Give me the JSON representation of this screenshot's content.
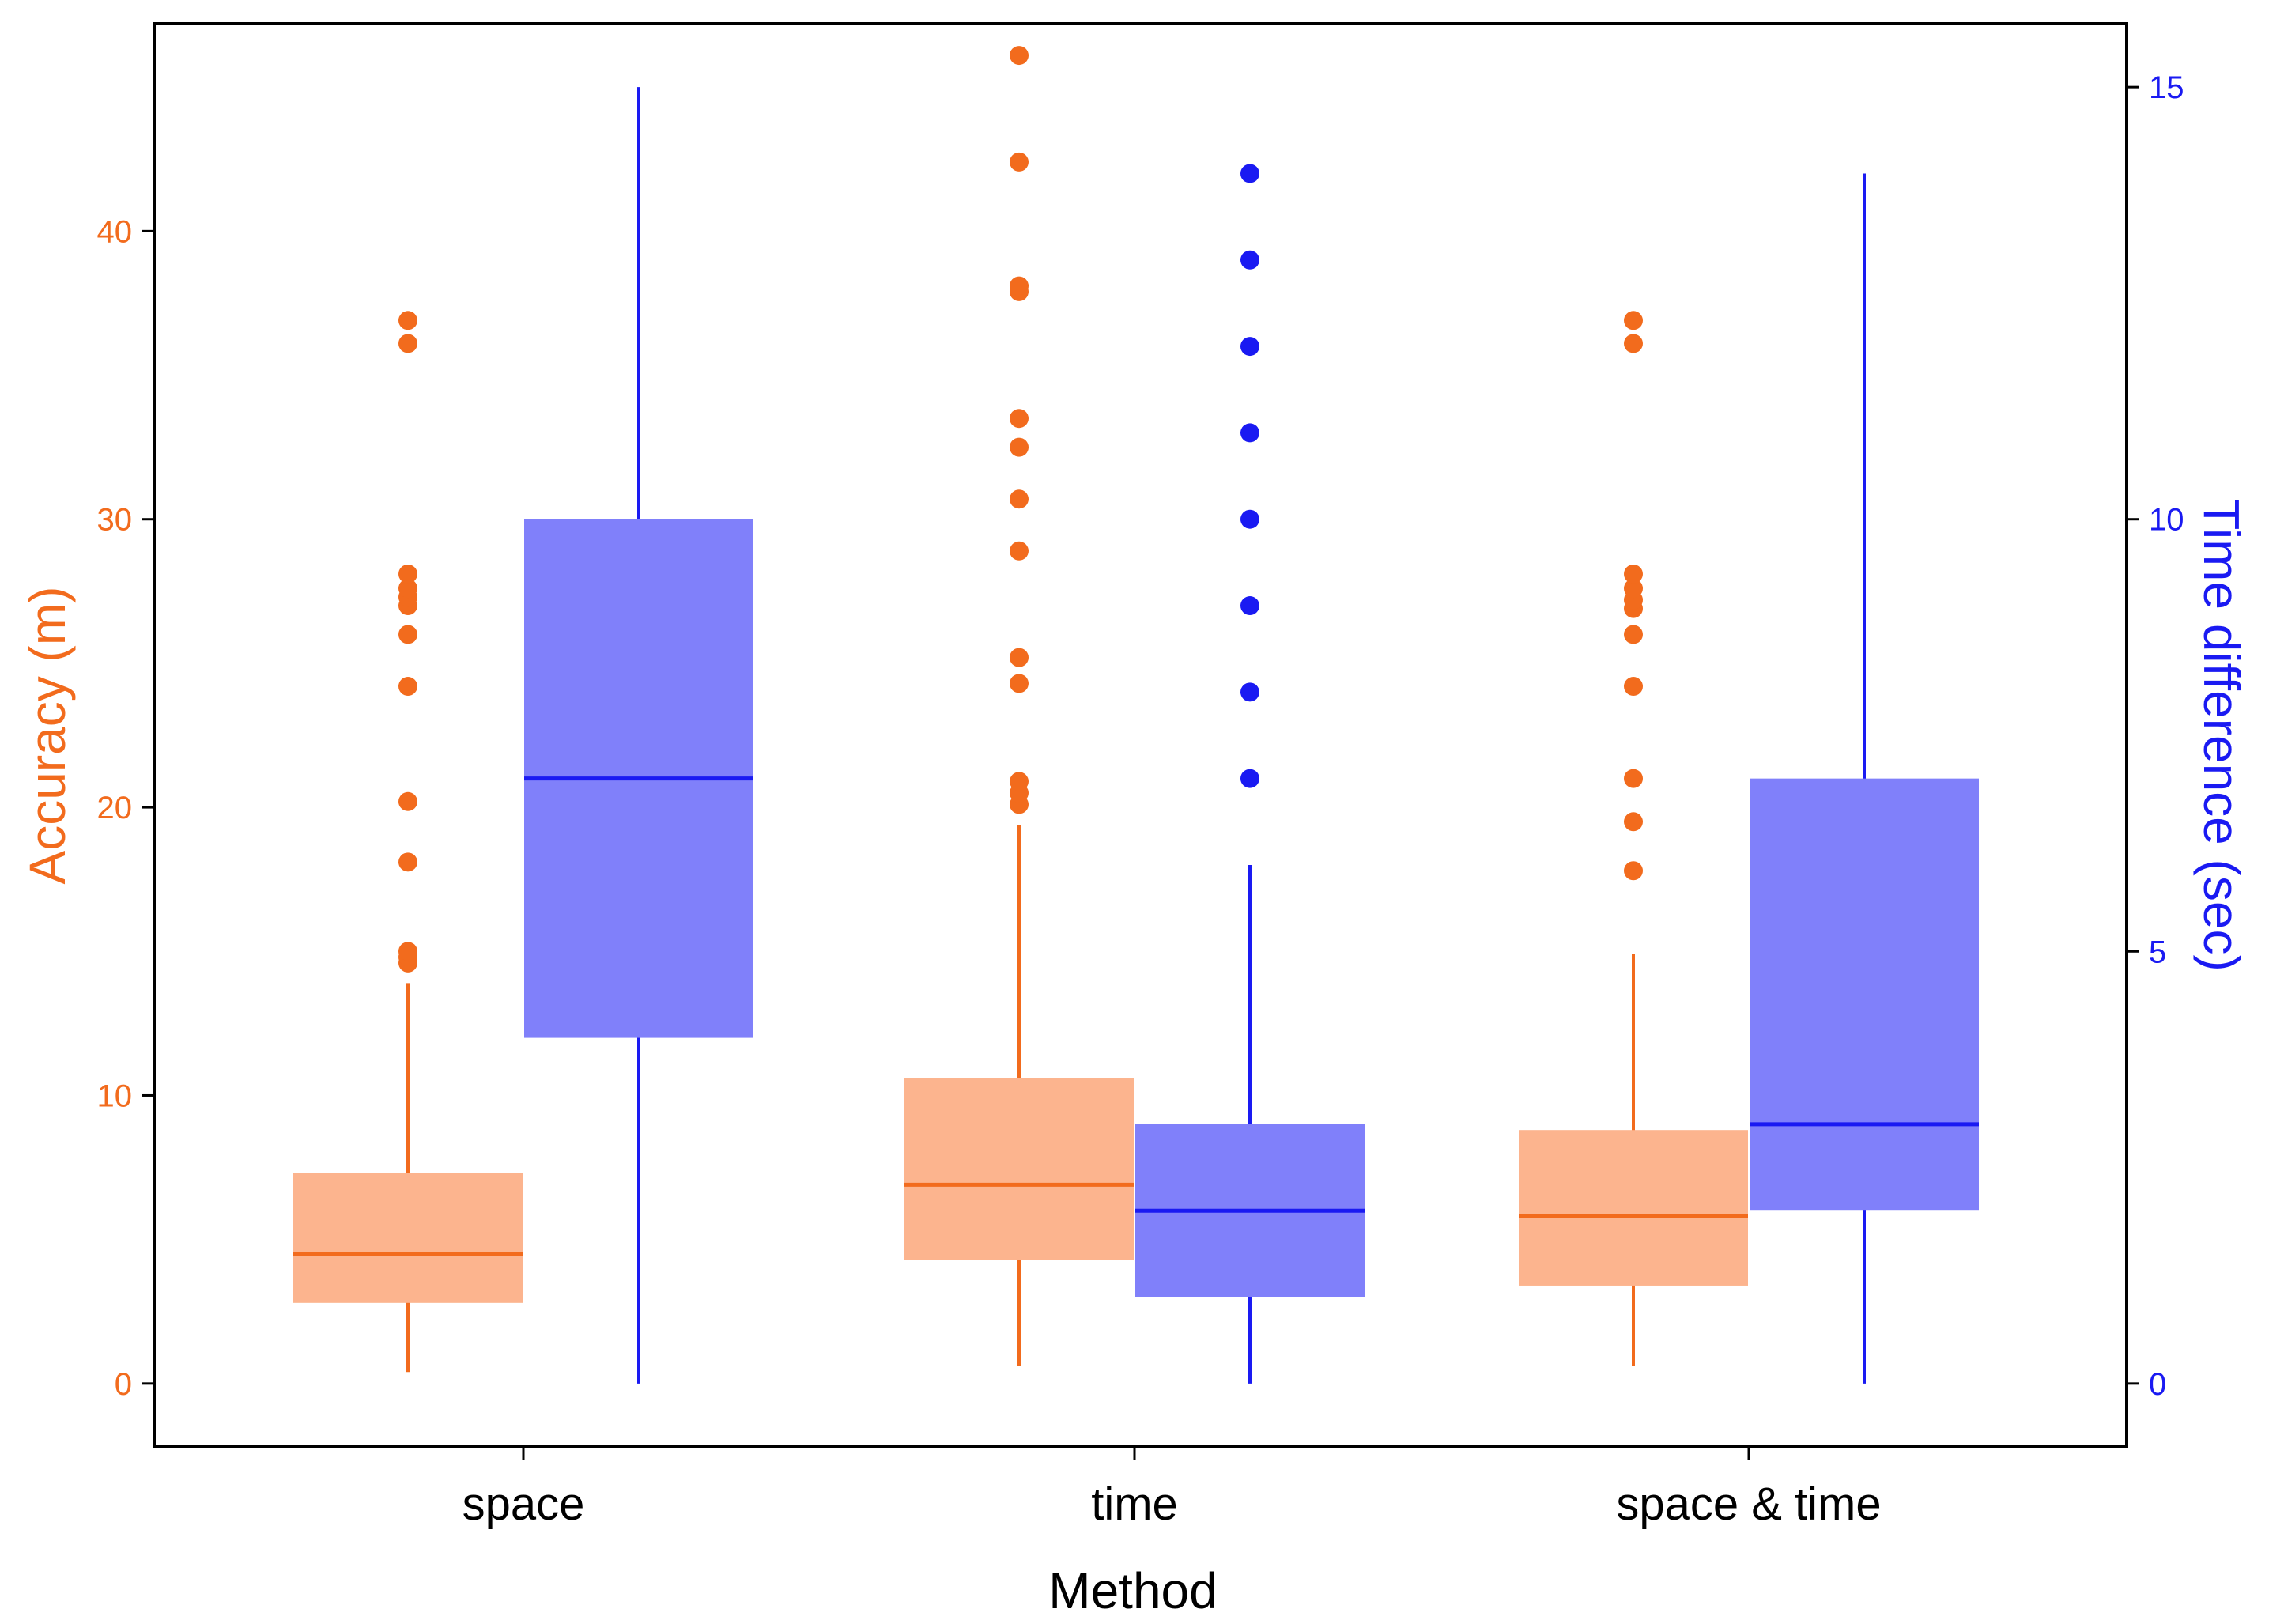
{
  "chart_data": {
    "type": "boxplot",
    "xlabel": "Method",
    "categories": [
      "space",
      "time",
      "space & time"
    ],
    "y_left": {
      "label": "Accuracy (m)",
      "range": [
        -2.2,
        47.2
      ],
      "ticks": [
        0,
        10,
        20,
        30,
        40
      ],
      "tick_labels": [
        "0",
        "10",
        "20",
        "30",
        "40"
      ],
      "color": "#F26B1D"
    },
    "y_right": {
      "label": "Time difference (sec)",
      "range": [
        -0.7333,
        15.7333
      ],
      "ticks": [
        0,
        5,
        10,
        15
      ],
      "tick_labels": [
        "0",
        "5",
        "10",
        "15"
      ],
      "color": "#1A1AF2"
    },
    "series": [
      {
        "name": "Accuracy (m)",
        "axis": "left",
        "box_fill": "#FCB48E",
        "line_color": "#F26B1D",
        "boxes": [
          {
            "category": "space",
            "whisker_low": 0.4,
            "q1": 2.8,
            "median": 4.5,
            "q3": 7.3,
            "whisker_high": 13.9,
            "outliers": [
              14.6,
              14.8,
              15.0,
              18.1,
              20.2,
              24.2,
              26.0,
              27.0,
              27.3,
              27.6,
              28.1,
              36.1,
              36.9
            ]
          },
          {
            "category": "time",
            "whisker_low": 0.6,
            "q1": 4.3,
            "median": 6.9,
            "q3": 10.6,
            "whisker_high": 19.4,
            "outliers": [
              20.1,
              20.5,
              20.9,
              24.3,
              25.2,
              28.9,
              30.7,
              32.5,
              33.5,
              37.9,
              38.1,
              42.4,
              46.1
            ]
          },
          {
            "category": "space & time",
            "whisker_low": 0.6,
            "q1": 3.4,
            "median": 5.8,
            "q3": 8.8,
            "whisker_high": 14.9,
            "outliers": [
              17.8,
              19.5,
              21.0,
              24.2,
              26.0,
              26.9,
              27.2,
              27.6,
              28.1,
              36.1,
              36.9
            ]
          }
        ]
      },
      {
        "name": "Time difference (sec)",
        "axis": "right",
        "box_fill": "#8080FA",
        "line_color": "#1A1AF2",
        "boxes": [
          {
            "category": "space",
            "whisker_low": 0,
            "q1": 4,
            "median": 7,
            "q3": 10,
            "whisker_high": 15,
            "outliers": []
          },
          {
            "category": "time",
            "whisker_low": 0,
            "q1": 1,
            "median": 2,
            "q3": 3,
            "whisker_high": 6,
            "outliers": [
              7,
              8,
              9,
              10,
              11,
              12,
              13,
              14
            ]
          },
          {
            "category": "space & time",
            "whisker_low": 0,
            "q1": 2,
            "median": 3,
            "q3": 7,
            "whisker_high": 14,
            "outliers": []
          }
        ]
      }
    ]
  }
}
